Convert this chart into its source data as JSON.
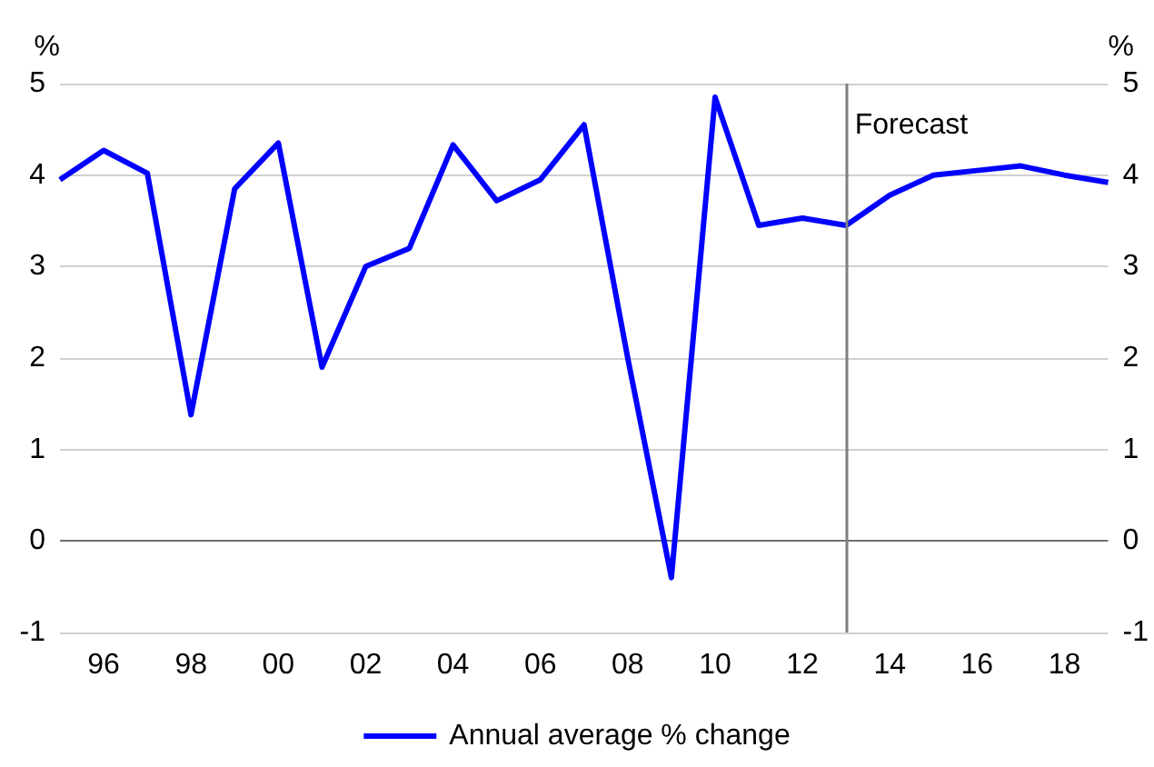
{
  "chart_data": {
    "type": "line",
    "ylabel": "%",
    "y2label": "%",
    "x": [
      1995,
      1996,
      1997,
      1998,
      1999,
      2000,
      2001,
      2002,
      2003,
      2004,
      2005,
      2006,
      2007,
      2008,
      2009,
      2010,
      2011,
      2012,
      2013,
      2014,
      2015,
      2016,
      2017,
      2018,
      2019
    ],
    "series": [
      {
        "name": "Annual average % change",
        "color": "#0000ff",
        "values": [
          3.95,
          4.27,
          4.02,
          1.38,
          3.85,
          4.35,
          1.9,
          3.0,
          3.2,
          4.33,
          3.72,
          3.95,
          4.55,
          2.0,
          -0.4,
          4.85,
          3.45,
          3.53,
          3.45,
          3.78,
          4.0,
          4.05,
          4.1,
          4.0,
          3.92
        ]
      }
    ],
    "xlim": [
      1995,
      2019
    ],
    "xticks": [
      {
        "value": 1996,
        "label": "96"
      },
      {
        "value": 1998,
        "label": "98"
      },
      {
        "value": 2000,
        "label": "00"
      },
      {
        "value": 2002,
        "label": "02"
      },
      {
        "value": 2004,
        "label": "04"
      },
      {
        "value": 2006,
        "label": "06"
      },
      {
        "value": 2008,
        "label": "08"
      },
      {
        "value": 2010,
        "label": "10"
      },
      {
        "value": 2012,
        "label": "12"
      },
      {
        "value": 2014,
        "label": "14"
      },
      {
        "value": 2016,
        "label": "16"
      },
      {
        "value": 2018,
        "label": "18"
      }
    ],
    "ylim": [
      -1,
      5
    ],
    "yticks": [
      -1,
      0,
      1,
      2,
      3,
      4,
      5
    ],
    "y2lim": [
      -1,
      5
    ],
    "y2ticks": [
      -1,
      0,
      1,
      2,
      3,
      4,
      5
    ],
    "ref_lines": [
      {
        "axis": "x",
        "value": 2013,
        "label": "Forecast",
        "color": "#7f7f7f"
      }
    ],
    "grid": "y",
    "legend": "bottom",
    "marker": "none",
    "line_style": "solid"
  }
}
